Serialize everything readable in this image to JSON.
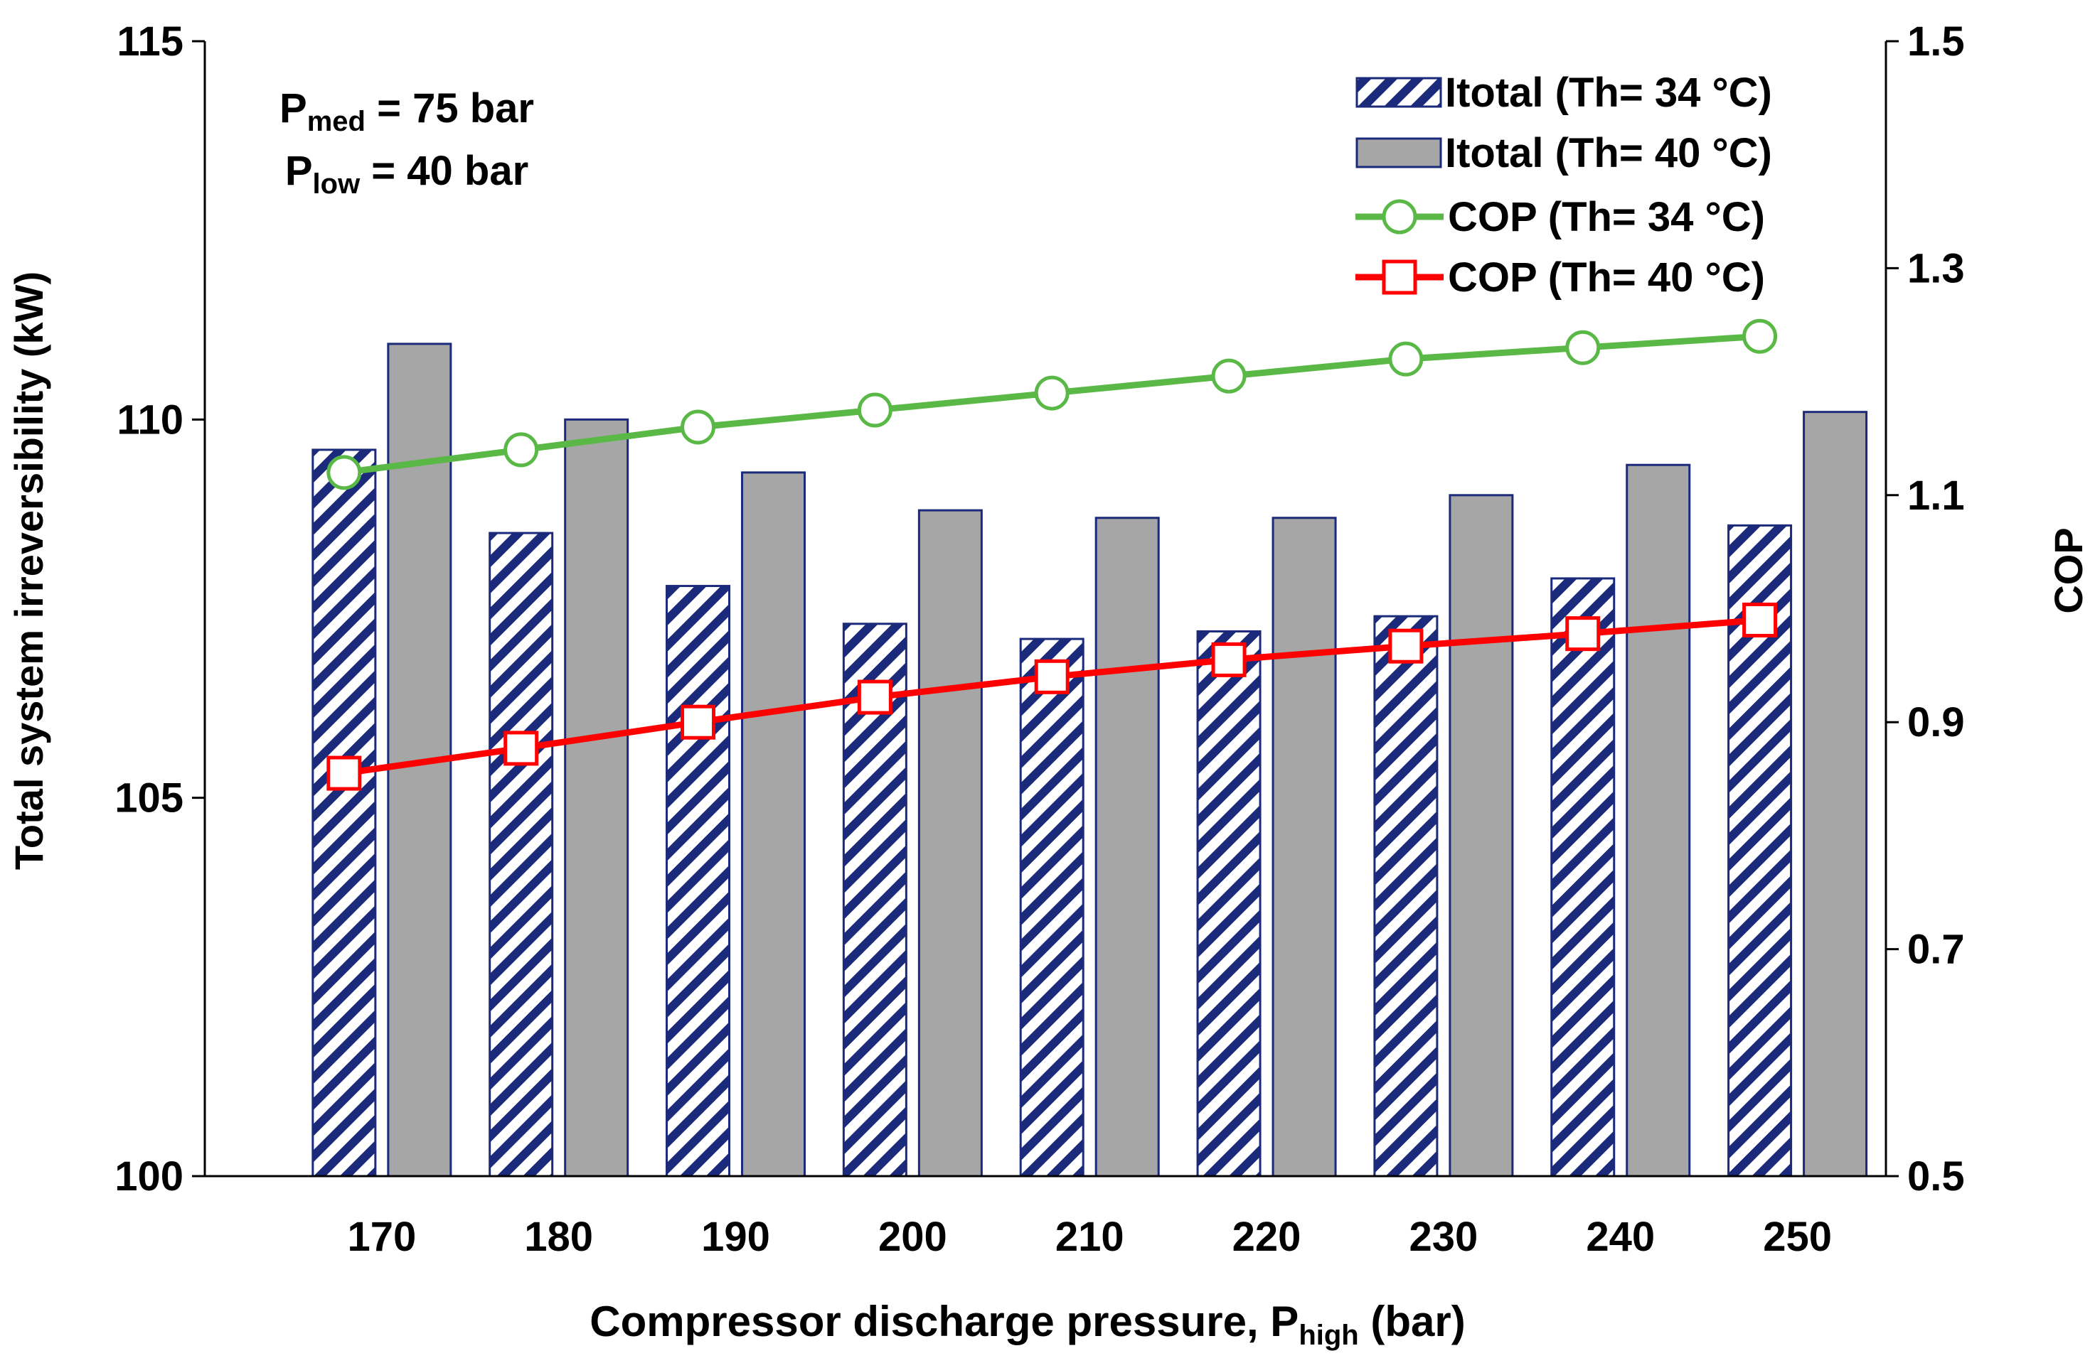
{
  "chart_data": {
    "type": "bar+line (dual y-axis)",
    "title": "",
    "xlabel": "Compressor discharge pressure, P",
    "xlabel_sub": "high",
    "xlabel_suffix": " (bar)",
    "ylabel_left": "Total system irreversibility (kW)",
    "ylabel_right": "COP",
    "ylim_left": [
      100,
      115
    ],
    "ylim_right": [
      0.5,
      1.5
    ],
    "yticks_left": [
      "100",
      "105",
      "110",
      "115"
    ],
    "yticks_right": [
      "0.5",
      "0.7",
      "0.9",
      "1.1",
      "1.3",
      "1.5"
    ],
    "categories": [
      "170",
      "180",
      "190",
      "200",
      "210",
      "220",
      "230",
      "240",
      "250"
    ],
    "bar_series": [
      {
        "name": "Itotal (Th= 34 °C)",
        "axis": "left",
        "style": "hatched",
        "color": "#1b2a7a",
        "values": [
          109.6,
          108.5,
          107.8,
          107.3,
          107.1,
          107.2,
          107.4,
          107.9,
          108.6
        ]
      },
      {
        "name": "Itotal (Th= 40 °C)",
        "axis": "left",
        "style": "solid",
        "color": "#a6a6a6",
        "values": [
          111.0,
          110.0,
          109.3,
          108.8,
          108.7,
          108.7,
          109.0,
          109.4,
          110.1
        ]
      }
    ],
    "line_series": [
      {
        "name": "COP (Th= 34 °C)",
        "axis": "right",
        "marker": "circle",
        "color": "#5ab946",
        "values": [
          1.12,
          1.14,
          1.16,
          1.175,
          1.19,
          1.205,
          1.22,
          1.23,
          1.24
        ]
      },
      {
        "name": "COP (Th= 40 °C)",
        "axis": "right",
        "marker": "square",
        "color": "#ff0000",
        "values": [
          0.855,
          0.877,
          0.9,
          0.922,
          0.94,
          0.955,
          0.967,
          0.978,
          0.99
        ]
      }
    ],
    "annotation": {
      "line1_prefix": "P",
      "line1_sub": "med",
      "line1_suffix": " = 75 bar",
      "line2_prefix": "P",
      "line2_sub": "low",
      "line2_suffix": " = 40 bar"
    },
    "legend": "top-right"
  }
}
